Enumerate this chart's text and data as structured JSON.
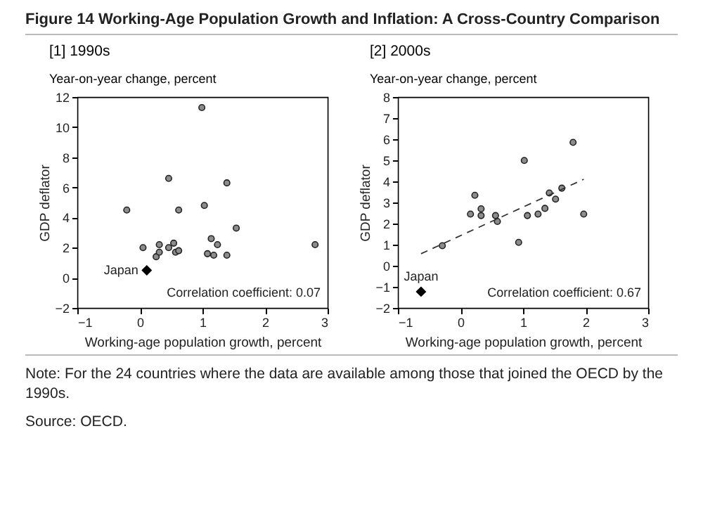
{
  "chart_data": [
    {
      "type": "scatter",
      "title": "Figure 14   Working-Age Population Growth and Inflation: A Cross-Country Comparison",
      "subtitle": "[1] 1990s",
      "xlabel": "Working-age population growth, percent",
      "ylabel": "GDP deflator",
      "annotations": [
        "Year-on-year change, percent",
        "Correlation coefficient: 0.07",
        "Note: For the 24 countries where the data are available among those that joined the OECD by the 1990s.",
        "Source: OECD."
      ],
      "xlim": [
        -1,
        3
      ],
      "xticks": [
        -1,
        0,
        1,
        2,
        3
      ],
      "ylim": [
        -2,
        12
      ],
      "yticks": [
        -2,
        0,
        2,
        4,
        6,
        8,
        10,
        12
      ],
      "grid": false,
      "series": [
        {
          "color": "#8c8c8c",
          "marker": "circle",
          "x": [
            0.99,
            0.46,
            1.39,
            -0.21,
            0.62,
            1.03,
            1.54,
            0.05,
            0.31,
            0.46,
            0.26,
            0.31,
            0.54,
            0.57,
            0.62,
            1.08,
            1.18,
            1.24,
            1.39,
            2.8,
            1.14
          ],
          "values": [
            11.3,
            6.6,
            6.3,
            4.5,
            4.5,
            4.8,
            3.3,
            2.0,
            2.2,
            2.0,
            1.4,
            1.7,
            2.3,
            1.7,
            1.8,
            1.6,
            1.5,
            2.2,
            1.5,
            2.2,
            2.6
          ]
        },
        {
          "name": "Japan",
          "color": "#000000",
          "marker": "diamond",
          "x": [
            0.11
          ],
          "values": [
            0.5
          ]
        }
      ]
    },
    {
      "type": "scatter",
      "subtitle": "[2] 2000s",
      "xlabel": "Working-age population growth, percent",
      "ylabel": "GDP deflator",
      "annotations": [
        "Year-on-year change, percent",
        "Correlation coefficient: 0.67"
      ],
      "xlim": [
        -1,
        3
      ],
      "xticks": [
        -1,
        0,
        1,
        2,
        3
      ],
      "ylim": [
        -2,
        8
      ],
      "yticks": [
        -2,
        -1,
        0,
        1,
        2,
        3,
        4,
        5,
        6,
        7,
        8
      ],
      "grid": false,
      "series": [
        {
          "color": "#8c8c8c",
          "marker": "circle",
          "x": [
            1.8,
            1.02,
            1.62,
            1.42,
            1.52,
            0.23,
            0.33,
            0.16,
            0.33,
            0.56,
            1.07,
            1.24,
            1.35,
            1.97,
            -0.29,
            0.93,
            0.59
          ],
          "values": [
            5.85,
            4.99,
            3.68,
            3.45,
            3.16,
            3.34,
            2.7,
            2.45,
            2.38,
            2.38,
            2.38,
            2.45,
            2.72,
            2.45,
            0.95,
            1.11,
            2.1
          ]
        },
        {
          "name": "Japan",
          "color": "#000000",
          "marker": "diamond",
          "x": [
            -0.63
          ],
          "values": [
            -1.23
          ]
        },
        {
          "type": "line",
          "color": "#333333",
          "line_style": "dashed",
          "x": [
            -0.63,
            1.97
          ],
          "values": [
            0.57,
            4.1
          ]
        }
      ]
    }
  ]
}
